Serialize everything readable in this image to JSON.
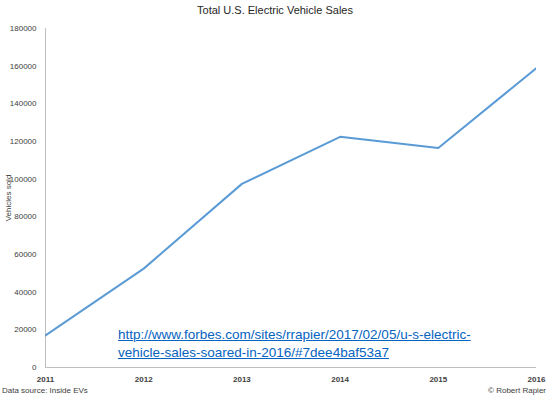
{
  "chart_data": {
    "type": "line",
    "title": "Total U.S. Electric Vehicle Sales",
    "y_label": "Vehicles sold",
    "x": [
      2011,
      2012,
      2013,
      2014,
      2015,
      2016
    ],
    "values": [
      17000,
      52500,
      97500,
      122500,
      116500,
      159000
    ],
    "color": "#5b9bd5",
    "xlim": [
      2011,
      2016
    ],
    "xticks": [
      2011,
      2012,
      2013,
      2014,
      2015,
      2016
    ],
    "ylim": [
      0,
      180000
    ],
    "yticks": [
      0,
      20000,
      40000,
      60000,
      80000,
      100000,
      120000,
      140000,
      160000,
      180000
    ],
    "grid": false,
    "annotations": [
      "http://www.forbes.com/sites/rrapier/2017/02/05/u-s-electric-",
      "vehicle-sales-soared-in-2016/#7dee4baf53a7"
    ],
    "source": "Data source: Inside EVs",
    "credit": "© Robert Rapier"
  }
}
